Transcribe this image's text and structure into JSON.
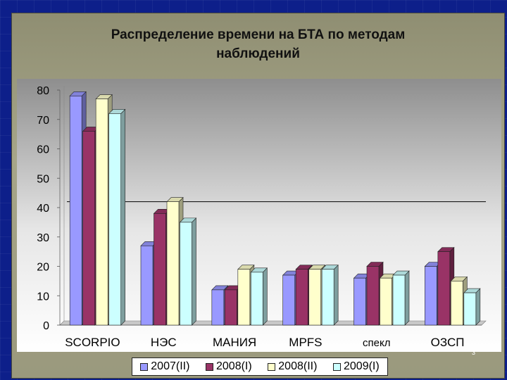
{
  "slide": {
    "title_line1": "Распределение времени на БТА по методам",
    "title_line2": "наблюдений",
    "slide_number": "3"
  },
  "chart_data": {
    "type": "bar",
    "title": "Распределение времени на БТА по методам наблюдений",
    "categories": [
      "SCORPIO",
      "НЭС",
      "МАНИЯ",
      "MPFS",
      "спекл",
      "ОЗСП"
    ],
    "series": [
      {
        "name": "2007(II)",
        "color": "#9999ff",
        "values": [
          78,
          27,
          12,
          17,
          16,
          20
        ]
      },
      {
        "name": "2008(I)",
        "color": "#993366",
        "values": [
          66,
          38,
          12,
          19,
          20,
          25
        ]
      },
      {
        "name": "2008(II)",
        "color": "#ffffcc",
        "values": [
          77,
          42,
          19,
          19,
          16,
          15
        ]
      },
      {
        "name": "2009(I)",
        "color": "#ccffff",
        "values": [
          72,
          35,
          18,
          19,
          17,
          11
        ]
      }
    ],
    "ylim": [
      0,
      80
    ],
    "yticks": [
      "0",
      "10",
      "20",
      "30",
      "40",
      "50",
      "60",
      "70",
      "80"
    ],
    "reference_line": 42,
    "grid": false,
    "legend_position": "bottom",
    "three_d": true
  }
}
